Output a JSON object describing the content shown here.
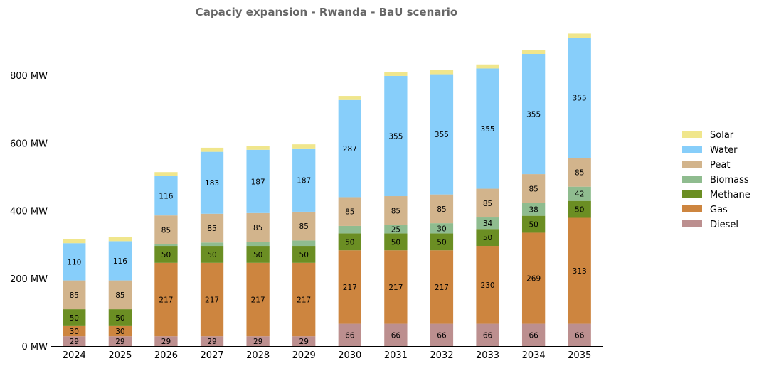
{
  "chart_data": {
    "type": "bar",
    "stacked": true,
    "title": "Capaciy expansion - Rwanda - BaU scenario",
    "xlabel": "",
    "ylabel": "",
    "categories": [
      "2024",
      "2025",
      "2026",
      "2027",
      "2028",
      "2029",
      "2030",
      "2031",
      "2032",
      "2033",
      "2034",
      "2035"
    ],
    "ylim": [
      0,
      950
    ],
    "yticks": [
      0,
      200,
      400,
      600,
      800
    ],
    "ytick_labels": [
      "0 MW",
      "200 MW",
      "400 MW",
      "600 MW",
      "800 MW"
    ],
    "grid": false,
    "legend_position": "right",
    "series": [
      {
        "name": "Diesel",
        "color": "#bc8f8f",
        "values": [
          29,
          29,
          29,
          29,
          29,
          29,
          66,
          66,
          66,
          66,
          66,
          66
        ],
        "labels": [
          "29",
          "29",
          "29",
          "29",
          "29",
          "29",
          "66",
          "66",
          "66",
          "66",
          "66",
          "66"
        ]
      },
      {
        "name": "Gas",
        "color": "#cd853f",
        "values": [
          30,
          30,
          217,
          217,
          217,
          217,
          217,
          217,
          217,
          230,
          269,
          313
        ],
        "labels": [
          "30",
          "30",
          "217",
          "217",
          "217",
          "217",
          "217",
          "217",
          "217",
          "230",
          "269",
          "313"
        ]
      },
      {
        "name": "Methane",
        "color": "#6b8e23",
        "values": [
          50,
          50,
          50,
          50,
          50,
          50,
          50,
          50,
          50,
          50,
          50,
          50
        ],
        "labels": [
          "50",
          "50",
          "50",
          "50",
          "50",
          "50",
          "50",
          "50",
          "50",
          "50",
          "50",
          "50"
        ]
      },
      {
        "name": "Biomass",
        "color": "#8fbc8f",
        "values": [
          0,
          0,
          5,
          10,
          12,
          16,
          22,
          25,
          30,
          34,
          38,
          42
        ],
        "labels": [
          "",
          "",
          "",
          "",
          "",
          "",
          "",
          "25",
          "30",
          "34",
          "38",
          "42"
        ]
      },
      {
        "name": "Peat",
        "color": "#d2b48c",
        "values": [
          85,
          85,
          85,
          85,
          85,
          85,
          85,
          85,
          85,
          85,
          85,
          85
        ],
        "labels": [
          "85",
          "85",
          "85",
          "85",
          "85",
          "85",
          "85",
          "85",
          "85",
          "85",
          "85",
          "85"
        ]
      },
      {
        "name": "Water",
        "color": "#87cefa",
        "values": [
          110,
          116,
          116,
          183,
          187,
          187,
          287,
          355,
          355,
          355,
          355,
          355
        ],
        "labels": [
          "110",
          "116",
          "116",
          "183",
          "187",
          "187",
          "287",
          "355",
          "355",
          "355",
          "355",
          "355"
        ]
      },
      {
        "name": "Solar",
        "color": "#f0e68c",
        "values": [
          12,
          12,
          12,
          12,
          12,
          12,
          12,
          12,
          12,
          12,
          12,
          12
        ],
        "labels": [
          "",
          "",
          "",
          "",
          "",
          "",
          "",
          "",
          "",
          "",
          "",
          ""
        ]
      }
    ]
  }
}
